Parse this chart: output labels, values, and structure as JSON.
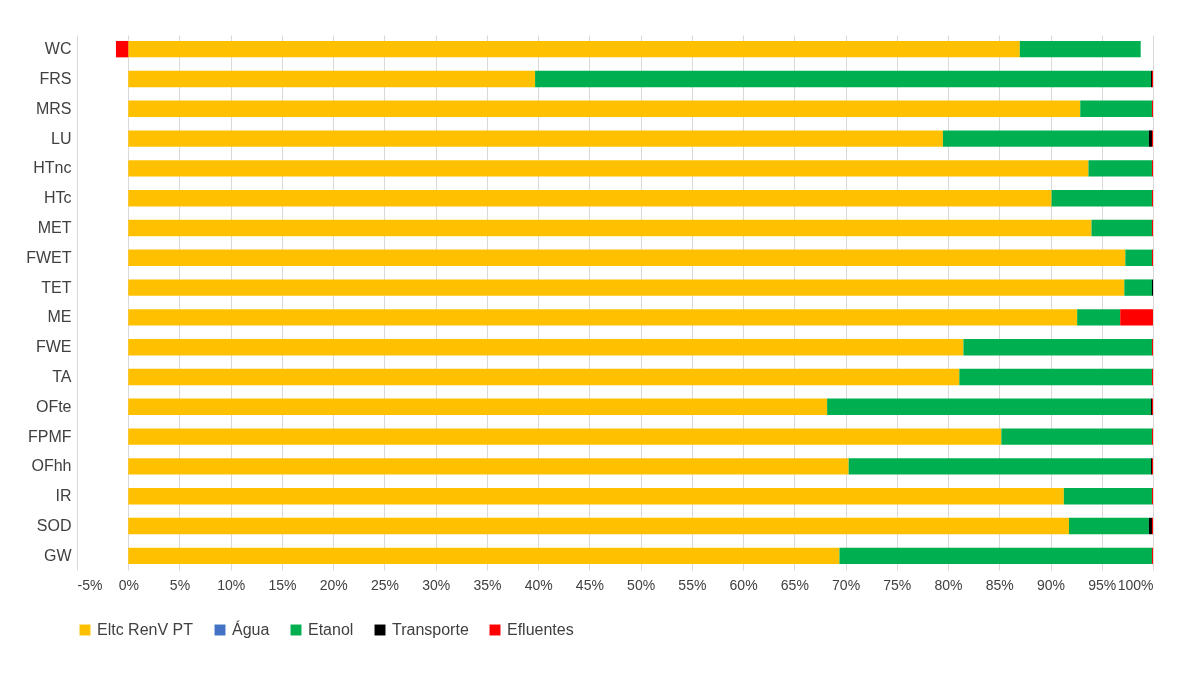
{
  "chart_data": {
    "type": "bar",
    "orientation": "horizontal",
    "stacked": true,
    "categories": [
      "WC",
      "FRS",
      "MRS",
      "LU",
      "HTnc",
      "HTc",
      "MET",
      "FWET",
      "TET",
      "ME",
      "FWE",
      "TA",
      "OFte",
      "FPMF",
      "OFhh",
      "IR",
      "SOD",
      "GW"
    ],
    "series": [
      {
        "name": "Eltc RenV PT",
        "color": "#ffc000",
        "values": [
          87.0,
          39.7,
          92.9,
          79.5,
          93.7,
          90.1,
          94.0,
          97.3,
          97.2,
          92.6,
          81.5,
          81.1,
          68.2,
          85.2,
          70.3,
          91.3,
          91.8,
          69.4
        ]
      },
      {
        "name": "Água",
        "color": "#4472c4",
        "values": [
          0,
          0,
          0,
          0,
          0,
          0,
          0,
          0,
          0,
          0,
          0,
          0,
          0,
          0,
          0,
          0,
          0,
          0
        ]
      },
      {
        "name": "Etanol",
        "color": "#00b050",
        "values": [
          11.8,
          60.1,
          7.0,
          20.1,
          6.2,
          9.8,
          5.9,
          2.6,
          2.7,
          4.2,
          18.4,
          18.8,
          31.6,
          14.7,
          29.5,
          8.6,
          7.8,
          30.5
        ]
      },
      {
        "name": "Transporte",
        "color": "#000000",
        "values": [
          0,
          0.1,
          0,
          0.3,
          0,
          0,
          0,
          0,
          0.1,
          0,
          0,
          0,
          0.1,
          0,
          0.1,
          0,
          0.3,
          0
        ]
      },
      {
        "name": "Efluentes",
        "color": "#ff0000",
        "values": [
          -1.2,
          0.1,
          0.1,
          0.1,
          0.1,
          0.1,
          0.1,
          0.1,
          0,
          3.2,
          0.1,
          0.1,
          0.1,
          0.1,
          0.1,
          0.1,
          0.1,
          0.1
        ]
      }
    ],
    "xlim": [
      -5,
      100
    ],
    "xticks": [
      {
        "value": -5,
        "label": "-5%"
      },
      {
        "value": 0,
        "label": "0%"
      },
      {
        "value": 5,
        "label": "5%"
      },
      {
        "value": 10,
        "label": "10%"
      },
      {
        "value": 15,
        "label": "15%"
      },
      {
        "value": 20,
        "label": "20%"
      },
      {
        "value": 25,
        "label": "25%"
      },
      {
        "value": 30,
        "label": "30%"
      },
      {
        "value": 35,
        "label": "35%"
      },
      {
        "value": 40,
        "label": "40%"
      },
      {
        "value": 45,
        "label": "45%"
      },
      {
        "value": 50,
        "label": "50%"
      },
      {
        "value": 55,
        "label": "55%"
      },
      {
        "value": 60,
        "label": "60%"
      },
      {
        "value": 65,
        "label": "65%"
      },
      {
        "value": 70,
        "label": "70%"
      },
      {
        "value": 75,
        "label": "75%"
      },
      {
        "value": 80,
        "label": "80%"
      },
      {
        "value": 85,
        "label": "85%"
      },
      {
        "value": 90,
        "label": "90%"
      },
      {
        "value": 95,
        "label": "95%"
      },
      {
        "value": 100,
        "label": "100%"
      }
    ],
    "grid": "x",
    "legend": "bottom"
  }
}
